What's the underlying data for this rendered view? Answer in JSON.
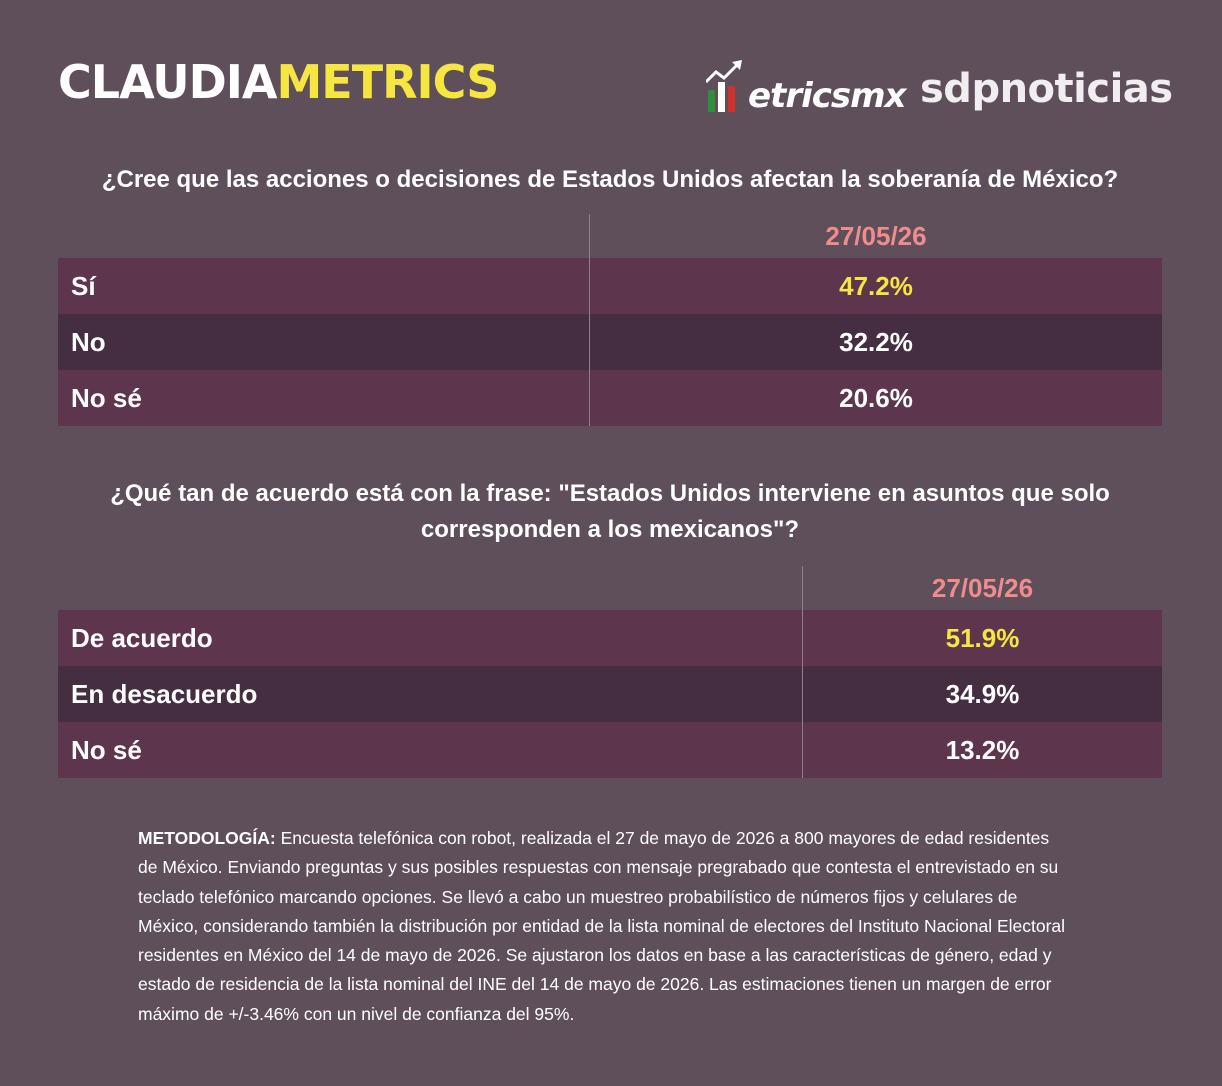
{
  "header": {
    "brand_part1": "CLAUDIA",
    "brand_part2": "METRICS",
    "logo_metricsmx": "etricsmx",
    "logo_sdp": "sdpnoticias",
    "colors": {
      "brand_yellow": "#f5e642",
      "flag_green": "#2f8f3a",
      "flag_red": "#d22f2f"
    }
  },
  "chart_data": [
    {
      "type": "table",
      "title": "¿Cree que las acciones o decisiones de Estados Unidos afectan la soberanía de México?",
      "column_header": "27/05/26",
      "rows": [
        {
          "label": "Sí",
          "value": "47.2%",
          "highlight": true
        },
        {
          "label": "No",
          "value": "32.2%",
          "highlight": false
        },
        {
          "label": "No sé",
          "value": "20.6%",
          "highlight": false
        }
      ]
    },
    {
      "type": "table",
      "title": "¿Qué tan de acuerdo está con la frase: \"Estados Unidos interviene en asuntos que solo corresponden a los mexicanos\"?",
      "column_header": "27/05/26",
      "rows": [
        {
          "label": "De acuerdo",
          "value": "51.9%",
          "highlight": true
        },
        {
          "label": "En desacuerdo",
          "value": "34.9%",
          "highlight": false
        },
        {
          "label": "No sé",
          "value": "13.2%",
          "highlight": false
        }
      ]
    }
  ],
  "methodology": {
    "label": "METODOLOGÍA:",
    "text": " Encuesta telefónica con robot, realizada el 27 de mayo de 2026 a 800 mayores de edad residentes de México. Enviando preguntas y sus posibles respuestas con mensaje pregrabado que contesta el entrevistado en su teclado telefónico marcando opciones. Se llevó a cabo un muestreo probabilístico de números fijos y celulares de México, considerando también la distribución por entidad de la lista nominal de electores del Instituto Nacional Electoral residentes en México del 14 de mayo de 2026. Se ajustaron los datos en base a las características de género, edad y estado de residencia de la lista nominal del INE del 14 de mayo de 2026. Las estimaciones tienen un margen de error máximo de +/-3.46% con un nivel de confianza del 95%."
  }
}
